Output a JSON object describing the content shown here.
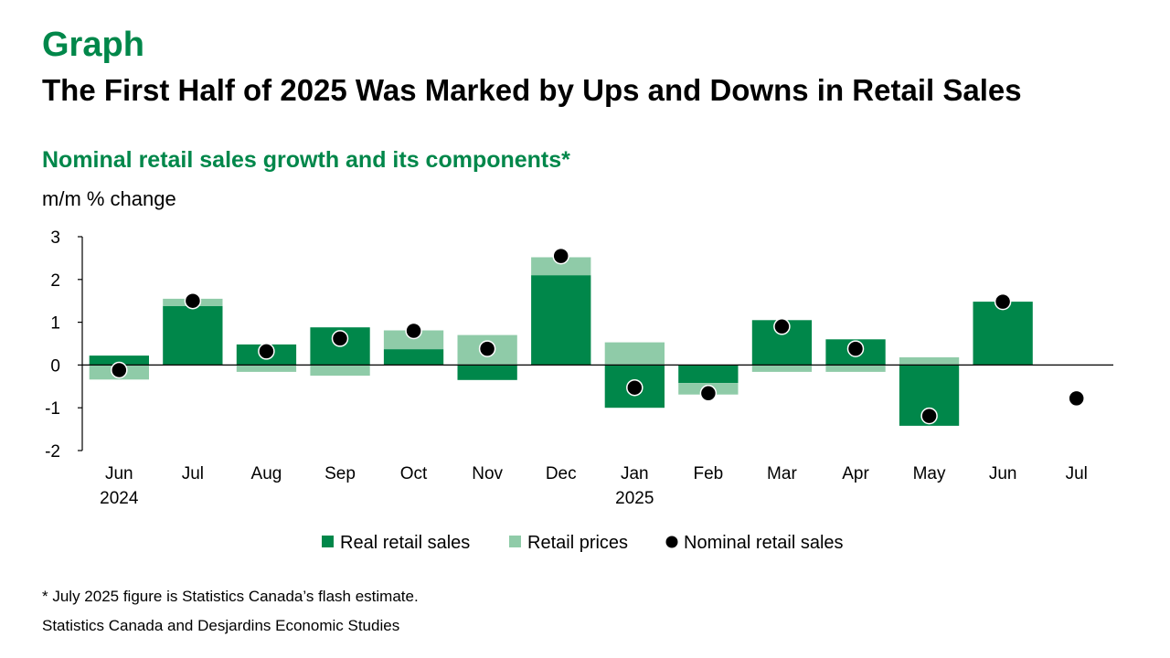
{
  "header": {
    "eyebrow": "Graph",
    "title": "The First Half of 2025 Was Marked by Ups and Downs in Retail Sales"
  },
  "chart_data": {
    "type": "bar",
    "title": "Nominal retail sales growth and its components*",
    "ylabel": "m/m % change",
    "xlabel": "",
    "ylim": [
      -2,
      3
    ],
    "yticks": [
      3,
      2,
      1,
      0,
      -1,
      -2
    ],
    "categories": [
      "Jun",
      "Jul",
      "Aug",
      "Sep",
      "Oct",
      "Nov",
      "Dec",
      "Jan",
      "Feb",
      "Mar",
      "Apr",
      "May",
      "Jun",
      "Jul"
    ],
    "category_sublabels": [
      "2024",
      "",
      "",
      "",
      "",
      "",
      "",
      "2025",
      "",
      "",
      "",
      "",
      "",
      ""
    ],
    "stacked": true,
    "grid": false,
    "legend_position": "bottom",
    "series": [
      {
        "name": "Real retail sales",
        "kind": "bar",
        "color": "#00874a",
        "values": [
          0.22,
          1.38,
          0.48,
          0.88,
          0.37,
          -0.35,
          2.1,
          -1.0,
          -0.42,
          1.05,
          0.6,
          -1.42,
          1.48,
          null
        ]
      },
      {
        "name": "Retail prices",
        "kind": "bar",
        "color": "#8fcba8",
        "values": [
          -0.34,
          0.17,
          -0.16,
          -0.25,
          0.44,
          0.7,
          0.42,
          0.53,
          -0.27,
          -0.16,
          -0.16,
          0.18,
          0.0,
          null
        ]
      },
      {
        "name": "Nominal retail sales",
        "kind": "dot",
        "color": "#000000",
        "values": [
          -0.12,
          1.5,
          0.32,
          0.62,
          0.8,
          0.38,
          2.55,
          -0.53,
          -0.66,
          0.9,
          0.38,
          -1.19,
          1.48,
          -0.78
        ]
      }
    ]
  },
  "footer": {
    "note": "* July 2025 figure is Statistics Canada’s flash estimate.",
    "source": "Statistics Canada and Desjardins Economic Studies"
  }
}
